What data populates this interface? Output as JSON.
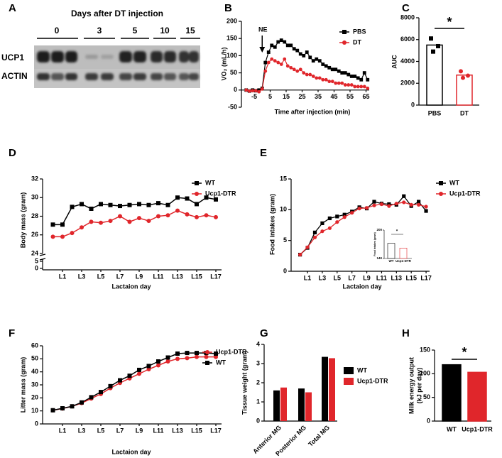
{
  "panel_labels": [
    "A",
    "B",
    "C",
    "D",
    "E",
    "F",
    "G",
    "H"
  ],
  "blot": {
    "title": "Days after DT injection",
    "lanes": [
      0,
      3,
      5,
      10,
      15
    ],
    "rows": [
      "UCP1",
      "ACTIN"
    ]
  },
  "chart_data": [
    {
      "type": "line",
      "xlabel": "Time after injection (min)",
      "ylabel": "VO₂ (mL/h)",
      "annotation": "NE",
      "x": [
        -10,
        -8,
        -6,
        -4,
        -2,
        0,
        2,
        4,
        6,
        8,
        10,
        12,
        14,
        16,
        18,
        20,
        22,
        24,
        26,
        28,
        30,
        32,
        34,
        36,
        38,
        40,
        42,
        44,
        46,
        48,
        50,
        52,
        54,
        56,
        58,
        60,
        62,
        64,
        66
      ],
      "series": [
        {
          "name": "PBS",
          "color": "#000000",
          "marker": "square",
          "values": [
            0,
            -3,
            0,
            -2,
            0,
            5,
            80,
            110,
            130,
            125,
            140,
            145,
            140,
            130,
            130,
            120,
            115,
            105,
            100,
            110,
            95,
            85,
            90,
            85,
            75,
            70,
            65,
            60,
            60,
            55,
            50,
            50,
            45,
            40,
            40,
            35,
            30,
            50,
            30
          ]
        },
        {
          "name": "DT",
          "color": "#e0262b",
          "marker": "circle",
          "values": [
            0,
            -3,
            -2,
            -2,
            -5,
            3,
            55,
            80,
            90,
            85,
            80,
            75,
            90,
            70,
            65,
            60,
            55,
            60,
            50,
            45,
            45,
            40,
            35,
            35,
            30,
            30,
            25,
            25,
            20,
            20,
            20,
            15,
            15,
            15,
            10,
            10,
            10,
            10,
            5
          ]
        }
      ],
      "xlim": [
        -13,
        67
      ],
      "xticks": [
        -5,
        5,
        15,
        25,
        35,
        45,
        55,
        65
      ],
      "ylim": [
        -50,
        200
      ],
      "yticks": [
        -50,
        0,
        50,
        100,
        150,
        200
      ]
    },
    {
      "type": "bar",
      "ylabel": "AUC",
      "annotation": "*",
      "categories": [
        "PBS",
        "DT"
      ],
      "values": [
        5500,
        2750
      ],
      "colors": [
        "#000000",
        "#e0262b"
      ],
      "bar_style": "outline",
      "points": [
        [
          6100,
          5400,
          4900
        ],
        [
          3100,
          2700,
          2500
        ]
      ],
      "ylim": [
        0,
        8000
      ],
      "yticks": [
        0,
        2000,
        4000,
        6000,
        8000
      ]
    },
    {
      "type": "line",
      "xlabel": "Lactaion day",
      "ylabel": "Body mass (gram)",
      "categories": [
        null,
        "L1",
        null,
        "L3",
        null,
        "L5",
        null,
        "L7",
        null,
        "L9",
        null,
        "L11",
        null,
        "L13",
        null,
        "L15",
        null,
        "L17"
      ],
      "series": [
        {
          "name": "WT",
          "color": "#000000",
          "marker": "square",
          "values": [
            27.1,
            27.1,
            29.0,
            29.3,
            28.8,
            29.3,
            29.2,
            29.1,
            29.2,
            29.3,
            29.2,
            29.4,
            29.2,
            30.0,
            29.9,
            29.3,
            30.0,
            29.8
          ]
        },
        {
          "name": "Ucp1-DTR",
          "color": "#e0262b",
          "marker": "circle",
          "values": [
            25.8,
            25.8,
            26.2,
            26.8,
            27.4,
            27.3,
            27.5,
            28.0,
            27.4,
            27.8,
            27.5,
            28.0,
            28.1,
            28.6,
            28.2,
            27.9,
            28.1,
            27.9
          ]
        }
      ],
      "ylim": [
        24,
        32
      ],
      "yticks": [
        24,
        26,
        28,
        30,
        32
      ],
      "lower_yticks": [
        0,
        5
      ]
    },
    {
      "type": "line",
      "xlabel": "Lactaion day",
      "ylabel": "Food intakes (gram)",
      "categories": [
        null,
        "L1",
        null,
        "L3",
        null,
        "L5",
        null,
        "L7",
        null,
        "L9",
        null,
        "L11",
        null,
        "L13",
        null,
        "L15",
        null,
        "L17"
      ],
      "series": [
        {
          "name": "WT",
          "color": "#000000",
          "marker": "square",
          "values": [
            2.7,
            3.8,
            6.3,
            7.8,
            8.6,
            8.9,
            9.2,
            9.7,
            10.4,
            10.2,
            11.3,
            11.0,
            10.9,
            10.8,
            12.2,
            10.6,
            11.3,
            9.8
          ]
        },
        {
          "name": "Ucp1-DTR",
          "color": "#e0262b",
          "marker": "circle",
          "values": [
            2.7,
            3.9,
            5.5,
            6.5,
            7.0,
            8.0,
            8.8,
            9.5,
            10.2,
            10.3,
            10.7,
            10.9,
            10.6,
            11.0,
            11.2,
            10.8,
            10.8,
            10.5
          ]
        }
      ],
      "ylim": [
        0,
        15
      ],
      "yticks": [
        0,
        5,
        10,
        15
      ]
    },
    {
      "type": "bar",
      "ylabel": "Food intakes (gram)",
      "annotation": "*",
      "categories": [
        "WT",
        "Ucp1-DTR"
      ],
      "values": [
        172,
        162
      ],
      "colors": [
        "#000000",
        "#e0262b"
      ],
      "bar_style": "outline",
      "ylim": [
        140,
        200
      ],
      "yticks": [
        140,
        200
      ]
    },
    {
      "type": "line",
      "xlabel": "Lactaion day",
      "ylabel": "Litter mass (gram)",
      "categories": [
        null,
        "L1",
        null,
        "L3",
        null,
        "L5",
        null,
        "L7",
        null,
        "L9",
        null,
        "L11",
        null,
        "L13",
        null,
        "L15",
        null,
        "L17"
      ],
      "series": [
        {
          "name": "Ucp1-DTR",
          "color": "#e0262b",
          "marker": "circle",
          "values": [
            10.5,
            11.8,
            13.5,
            16,
            19.5,
            23,
            27.5,
            31.5,
            35,
            38.5,
            42,
            45,
            48,
            50,
            50.5,
            51.5,
            51.5,
            51.5
          ]
        },
        {
          "name": "WT",
          "color": "#000000",
          "marker": "square",
          "values": [
            10.5,
            12,
            13.5,
            16.5,
            20.5,
            24.5,
            29,
            33.5,
            37,
            41.5,
            44.5,
            48,
            51,
            54,
            54.5,
            54.5,
            54.5,
            54
          ]
        }
      ],
      "ylim": [
        0,
        60
      ],
      "yticks": [
        0,
        10,
        20,
        30,
        40,
        50,
        60
      ]
    },
    {
      "type": "bar",
      "ylabel": "Tissue weight (gram)",
      "categories": [
        "Anterior MG",
        "Posterior MG",
        "Total MG"
      ],
      "series": [
        {
          "name": "WT",
          "color": "#000000",
          "values": [
            1.6,
            1.7,
            3.35
          ]
        },
        {
          "name": "Ucp1-DTR",
          "color": "#e0262b",
          "values": [
            1.75,
            1.5,
            3.28
          ]
        }
      ],
      "ylim": [
        0,
        4
      ],
      "yticks": [
        0,
        1,
        2,
        3,
        4
      ]
    },
    {
      "type": "bar",
      "ylabel": [
        "Milk energy output",
        "(kJ per day)"
      ],
      "annotation": "*",
      "categories": [
        "WT",
        "Ucp1-DTR"
      ],
      "values": [
        119,
        103
      ],
      "colors": [
        "#000000",
        "#e0262b"
      ],
      "bar_style": "filled",
      "ylim": [
        0,
        150
      ],
      "yticks": [
        0,
        50,
        100,
        150
      ]
    }
  ]
}
